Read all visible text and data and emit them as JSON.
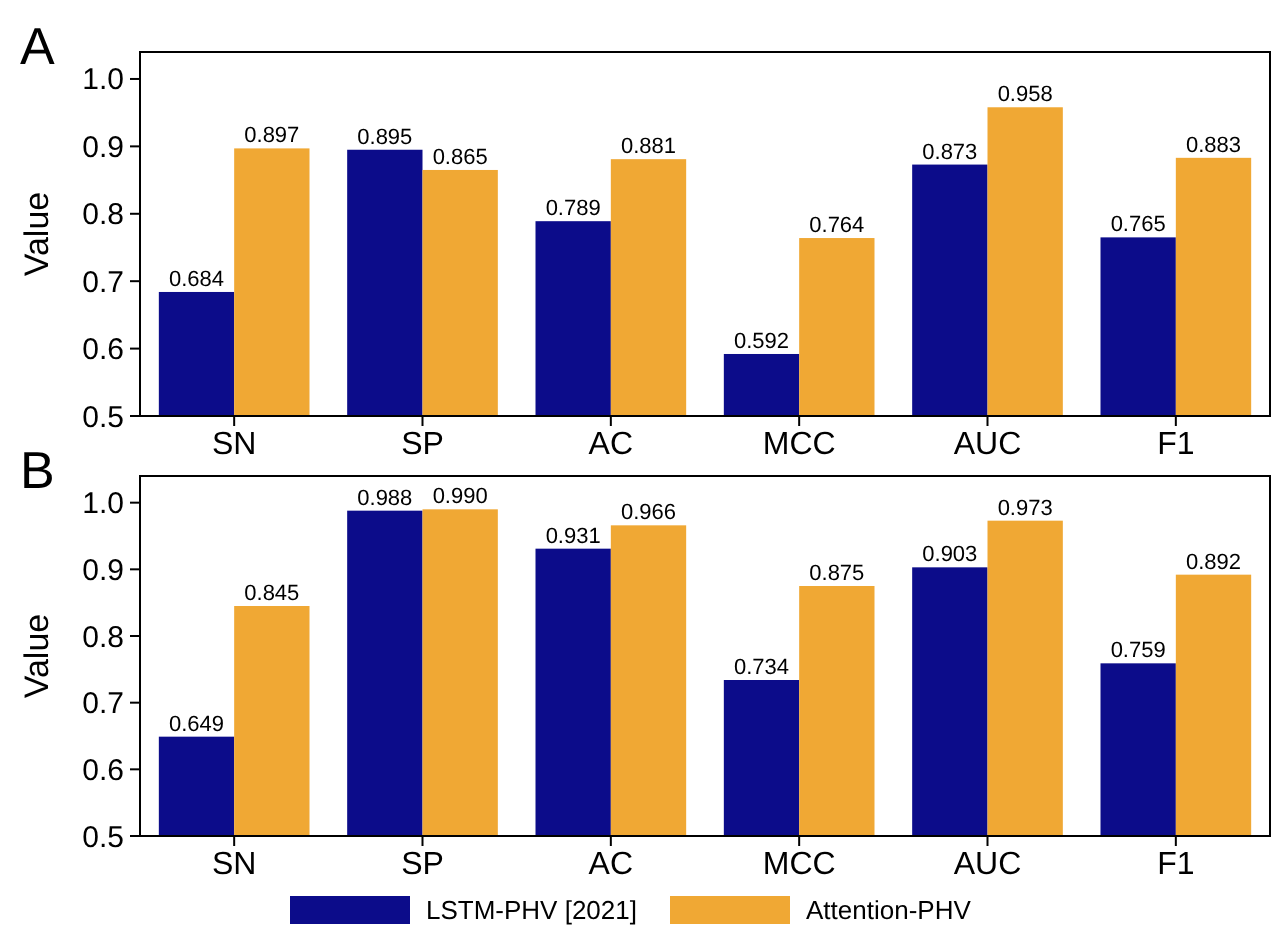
{
  "chart_data": [
    {
      "type": "bar",
      "title": "A",
      "ylabel": "Value",
      "categories": [
        "SN",
        "SP",
        "AC",
        "MCC",
        "AUC",
        "F1"
      ],
      "ylim": [
        0.5,
        1.04
      ],
      "yticks": [
        {
          "value": 0.5,
          "label": "0.5"
        },
        {
          "value": 0.6,
          "label": "0.6"
        },
        {
          "value": 0.7,
          "label": "0.7"
        },
        {
          "value": 0.8,
          "label": "0.8"
        },
        {
          "value": 0.9,
          "label": "0.9"
        },
        {
          "value": 1.0,
          "label": "1.0"
        }
      ],
      "series": [
        {
          "color": "#0c0c8a",
          "values": [
            0.684,
            0.895,
            0.789,
            0.592,
            0.873,
            0.765
          ],
          "value_labels": [
            "0.684",
            "0.895",
            "0.789",
            "0.592",
            "0.873",
            "0.765"
          ]
        },
        {
          "color": "#f0a834",
          "values": [
            0.897,
            0.865,
            0.881,
            0.764,
            0.958,
            0.883
          ],
          "value_labels": [
            "0.897",
            "0.865",
            "0.881",
            "0.764",
            "0.958",
            "0.883"
          ]
        }
      ]
    },
    {
      "type": "bar",
      "title": "B",
      "ylabel": "Value",
      "categories": [
        "SN",
        "SP",
        "AC",
        "MCC",
        "AUC",
        "F1"
      ],
      "ylim": [
        0.5,
        1.04
      ],
      "yticks": [
        {
          "value": 0.5,
          "label": "0.5"
        },
        {
          "value": 0.6,
          "label": "0.6"
        },
        {
          "value": 0.7,
          "label": "0.7"
        },
        {
          "value": 0.8,
          "label": "0.8"
        },
        {
          "value": 0.9,
          "label": "0.9"
        },
        {
          "value": 1.0,
          "label": "1.0"
        }
      ],
      "legend": "bottom",
      "series": [
        {
          "name": "LSTM-PHV [2021]",
          "color": "#0c0c8a",
          "values": [
            0.649,
            0.988,
            0.931,
            0.734,
            0.903,
            0.759
          ],
          "value_labels": [
            "0.649",
            "0.988",
            "0.931",
            "0.734",
            "0.903",
            "0.759"
          ]
        },
        {
          "name": "Attention-PHV",
          "color": "#f0a834",
          "values": [
            0.845,
            0.99,
            0.966,
            0.875,
            0.973,
            0.892
          ],
          "value_labels": [
            "0.845",
            "0.990",
            "0.966",
            "0.875",
            "0.973",
            "0.892"
          ]
        }
      ]
    }
  ]
}
